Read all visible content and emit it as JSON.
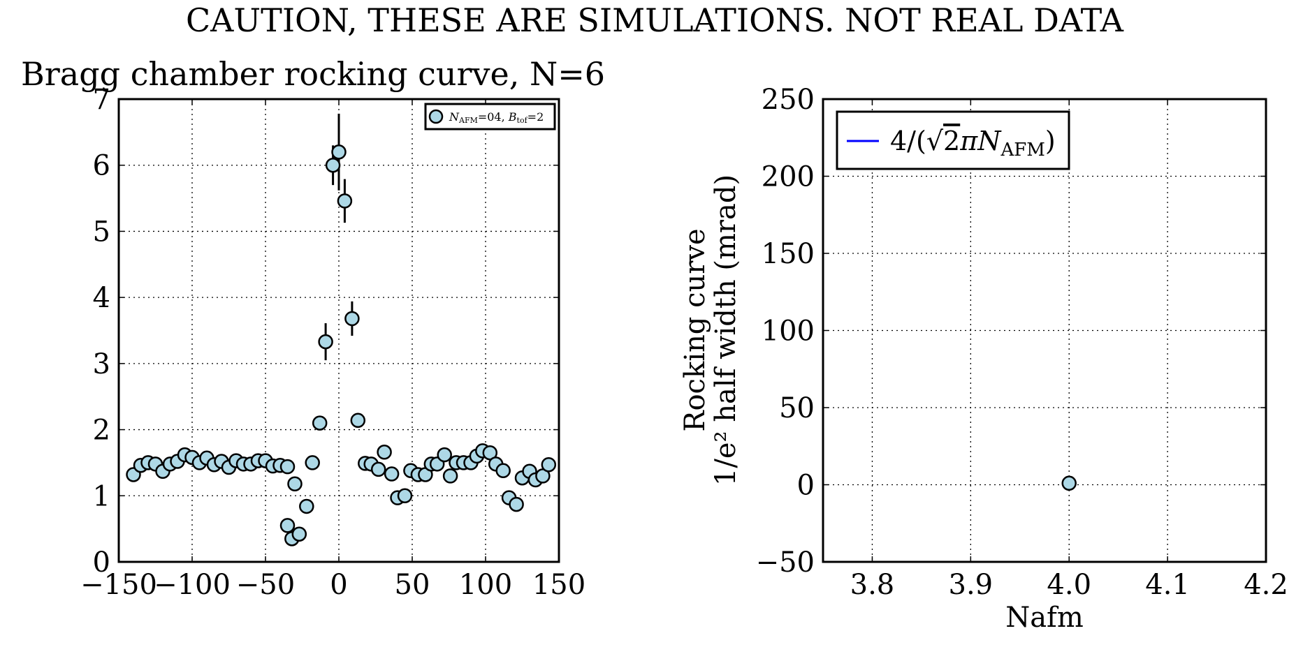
{
  "figure": {
    "suptitle": "CAUTION, THESE ARE SIMULATIONS. NOT REAL DATA"
  },
  "chart_data": [
    {
      "type": "scatter",
      "title": "Bragg chamber rocking curve, N=6",
      "xlabel": "",
      "ylabel": "",
      "xlim": [
        -150,
        150
      ],
      "ylim": [
        0,
        7
      ],
      "xticks": [
        "−150",
        "−100",
        "−50",
        "0",
        "50",
        "100",
        "150"
      ],
      "yticks": [
        "0",
        "1",
        "2",
        "3",
        "4",
        "5",
        "6",
        "7"
      ],
      "grid": true,
      "legend_position": "top-right",
      "marker_color": "#add8e6",
      "series": [
        {
          "name": "N_AFM=04, B_tof=2",
          "points": [
            {
              "x": -140,
              "y": 1.32,
              "err": 0.06
            },
            {
              "x": -135,
              "y": 1.46,
              "err": 0.06
            },
            {
              "x": -130,
              "y": 1.5,
              "err": 0.06
            },
            {
              "x": -125,
              "y": 1.48,
              "err": 0.06
            },
            {
              "x": -120,
              "y": 1.37,
              "err": 0.06
            },
            {
              "x": -115,
              "y": 1.48,
              "err": 0.06
            },
            {
              "x": -110,
              "y": 1.52,
              "err": 0.06
            },
            {
              "x": -105,
              "y": 1.62,
              "err": 0.06
            },
            {
              "x": -100,
              "y": 1.58,
              "err": 0.06
            },
            {
              "x": -95,
              "y": 1.5,
              "err": 0.06
            },
            {
              "x": -90,
              "y": 1.57,
              "err": 0.06
            },
            {
              "x": -85,
              "y": 1.47,
              "err": 0.06
            },
            {
              "x": -80,
              "y": 1.52,
              "err": 0.06
            },
            {
              "x": -75,
              "y": 1.43,
              "err": 0.06
            },
            {
              "x": -70,
              "y": 1.53,
              "err": 0.06
            },
            {
              "x": -65,
              "y": 1.48,
              "err": 0.06
            },
            {
              "x": -60,
              "y": 1.48,
              "err": 0.06
            },
            {
              "x": -55,
              "y": 1.53,
              "err": 0.06
            },
            {
              "x": -50,
              "y": 1.53,
              "err": 0.06
            },
            {
              "x": -45,
              "y": 1.45,
              "err": 0.06
            },
            {
              "x": -40,
              "y": 1.46,
              "err": 0.06
            },
            {
              "x": -35,
              "y": 1.44,
              "err": 0.06
            },
            {
              "x": -30,
              "y": 1.18,
              "err": 0.05
            },
            {
              "x": -35,
              "y": 0.55,
              "err": 0.04
            },
            {
              "x": -32,
              "y": 0.35,
              "err": 0.04
            },
            {
              "x": -27,
              "y": 0.42,
              "err": 0.04
            },
            {
              "x": -22,
              "y": 0.84,
              "err": 0.05
            },
            {
              "x": -18,
              "y": 1.5,
              "err": 0.06
            },
            {
              "x": -13,
              "y": 2.1,
              "err": 0.1
            },
            {
              "x": -9,
              "y": 3.33,
              "err": 0.28
            },
            {
              "x": -4,
              "y": 6.0,
              "err": 0.3
            },
            {
              "x": 0,
              "y": 6.2,
              "err": 0.58
            },
            {
              "x": 4,
              "y": 5.46,
              "err": 0.33
            },
            {
              "x": 9,
              "y": 3.68,
              "err": 0.26
            },
            {
              "x": 13,
              "y": 2.14,
              "err": 0.1
            },
            {
              "x": 18,
              "y": 1.49,
              "err": 0.06
            },
            {
              "x": 22,
              "y": 1.48,
              "err": 0.06
            },
            {
              "x": 27,
              "y": 1.4,
              "err": 0.06
            },
            {
              "x": 31,
              "y": 1.66,
              "err": 0.06
            },
            {
              "x": 36,
              "y": 1.33,
              "err": 0.06
            },
            {
              "x": 40,
              "y": 0.97,
              "err": 0.05
            },
            {
              "x": 45,
              "y": 1.0,
              "err": 0.05
            },
            {
              "x": 49,
              "y": 1.38,
              "err": 0.06
            },
            {
              "x": 54,
              "y": 1.32,
              "err": 0.06
            },
            {
              "x": 59,
              "y": 1.32,
              "err": 0.06
            },
            {
              "x": 63,
              "y": 1.48,
              "err": 0.06
            },
            {
              "x": 67,
              "y": 1.48,
              "err": 0.06
            },
            {
              "x": 72,
              "y": 1.62,
              "err": 0.06
            },
            {
              "x": 76,
              "y": 1.3,
              "err": 0.06
            },
            {
              "x": 80,
              "y": 1.5,
              "err": 0.06
            },
            {
              "x": 85,
              "y": 1.5,
              "err": 0.06
            },
            {
              "x": 90,
              "y": 1.5,
              "err": 0.06
            },
            {
              "x": 94,
              "y": 1.6,
              "err": 0.06
            },
            {
              "x": 98,
              "y": 1.68,
              "err": 0.06
            },
            {
              "x": 103,
              "y": 1.65,
              "err": 0.06
            },
            {
              "x": 107,
              "y": 1.48,
              "err": 0.06
            },
            {
              "x": 112,
              "y": 1.38,
              "err": 0.06
            },
            {
              "x": 116,
              "y": 0.97,
              "err": 0.05
            },
            {
              "x": 121,
              "y": 0.87,
              "err": 0.05
            },
            {
              "x": 125,
              "y": 1.27,
              "err": 0.06
            },
            {
              "x": 130,
              "y": 1.37,
              "err": 0.06
            },
            {
              "x": 134,
              "y": 1.24,
              "err": 0.06
            },
            {
              "x": 139,
              "y": 1.3,
              "err": 0.06
            },
            {
              "x": 143,
              "y": 1.47,
              "err": 0.06
            }
          ]
        }
      ]
    },
    {
      "type": "scatter",
      "title": "",
      "xlabel": "Nafm",
      "ylabel_line1": "Rocking curve",
      "ylabel_line2": "1/e²  half width (mrad)",
      "xlim": [
        3.75,
        4.2
      ],
      "ylim": [
        -50,
        250
      ],
      "xticks": [
        "3.8",
        "3.9",
        "4.0",
        "4.1",
        "4.2"
      ],
      "yticks": [
        "−50",
        "0",
        "50",
        "100",
        "150",
        "200",
        "250"
      ],
      "grid": true,
      "legend_position": "top-left",
      "line_color": "#0000ff",
      "marker_color": "#add8e6",
      "series": [
        {
          "name": "4/(√2πN_AFM)",
          "type": "line",
          "points": []
        },
        {
          "type": "scatter",
          "points": [
            {
              "x": 4.0,
              "y": 1.0,
              "err": 0
            }
          ]
        }
      ]
    }
  ]
}
